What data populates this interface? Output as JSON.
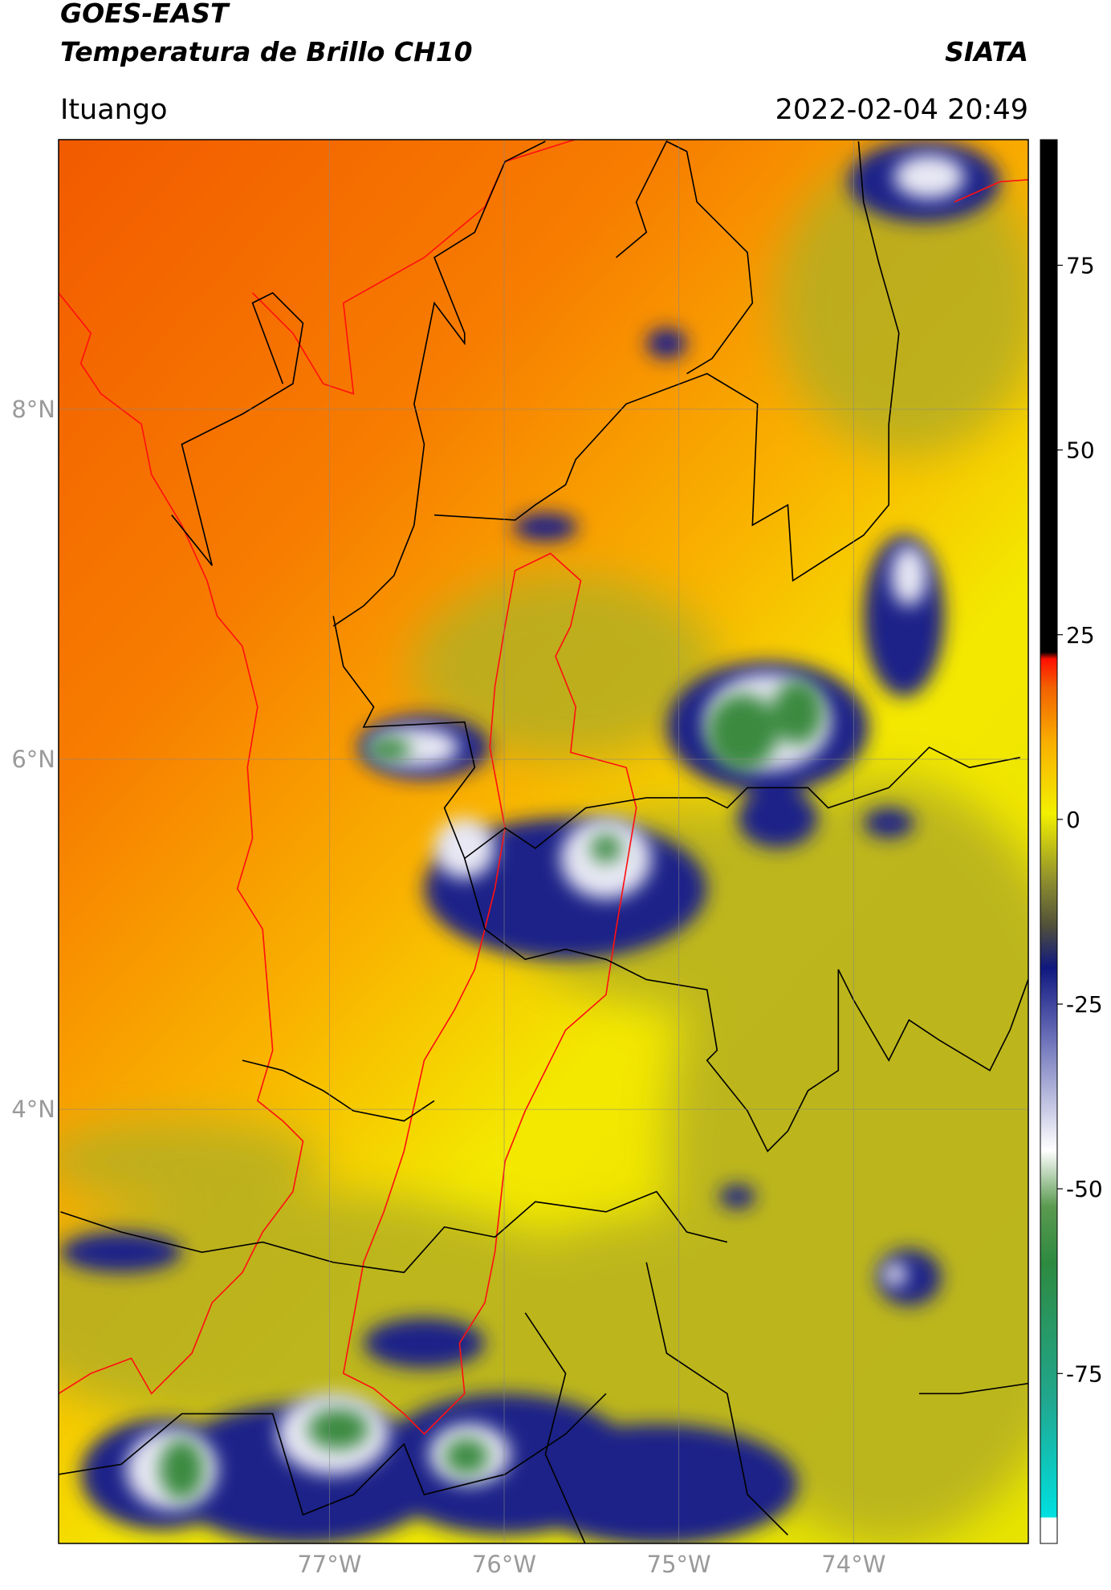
{
  "header": {
    "title": "GOES-EAST",
    "subtitle": "Temperatura de Brillo CH10",
    "organization": "SIATA",
    "location": "Ituango",
    "datetime": "2022-02-04 20:49"
  },
  "map": {
    "xlim": [
      -78.55,
      -73.0
    ],
    "ylim": [
      1.52,
      9.54
    ],
    "xticks": [
      {
        "value": -77,
        "label": "77°W"
      },
      {
        "value": -76,
        "label": "76°W"
      },
      {
        "value": -75,
        "label": "75°W"
      },
      {
        "value": -74,
        "label": "74°W"
      }
    ],
    "yticks": [
      {
        "value": 8,
        "label": "8°N"
      },
      {
        "value": 6,
        "label": "6°N"
      },
      {
        "value": 4,
        "label": "4°N"
      }
    ],
    "grid": true
  },
  "colorbar": {
    "lim": [
      -98,
      92
    ],
    "ticks": [
      75,
      50,
      25,
      0,
      -25,
      -50,
      -75
    ]
  }
}
